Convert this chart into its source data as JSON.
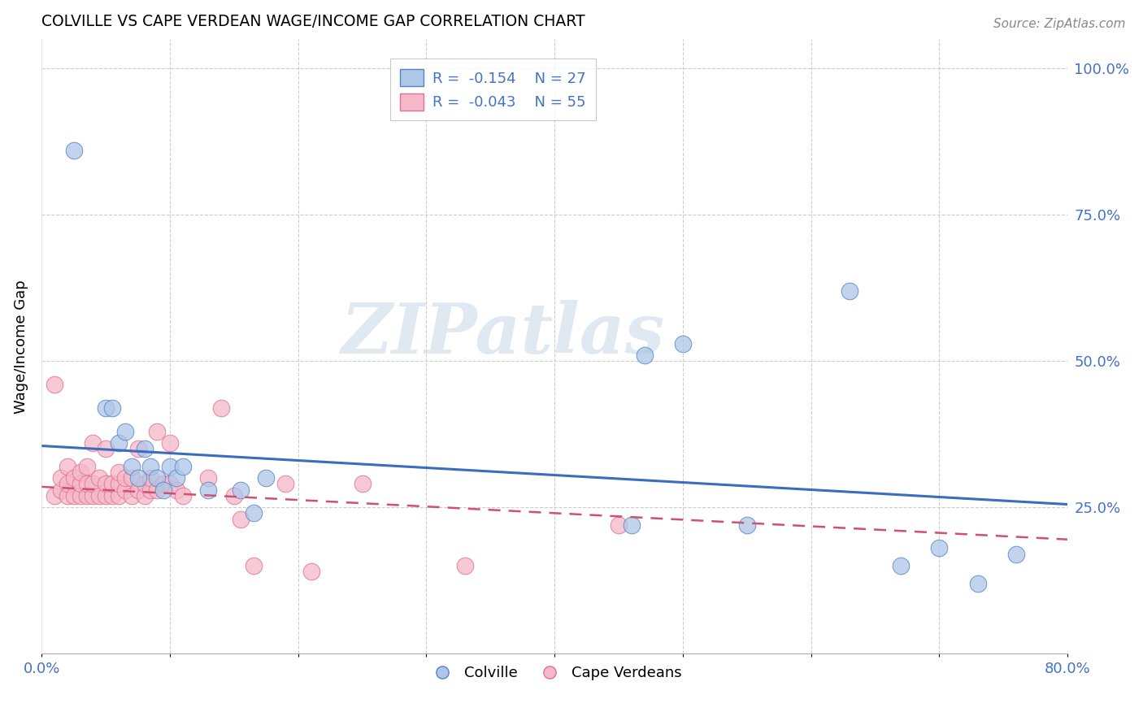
{
  "title": "COLVILLE VS CAPE VERDEAN WAGE/INCOME GAP CORRELATION CHART",
  "source": "Source: ZipAtlas.com",
  "ylabel": "Wage/Income Gap",
  "xlim": [
    0.0,
    0.8
  ],
  "ylim": [
    0.0,
    1.05
  ],
  "xticks": [
    0.0,
    0.1,
    0.2,
    0.3,
    0.4,
    0.5,
    0.6,
    0.7,
    0.8
  ],
  "xticklabels": [
    "0.0%",
    "",
    "",
    "",
    "",
    "",
    "",
    "",
    "80.0%"
  ],
  "yticks_right": [
    0.25,
    0.5,
    0.75,
    1.0
  ],
  "ytick_labels_right": [
    "25.0%",
    "50.0%",
    "75.0%",
    "100.0%"
  ],
  "colville_color": "#aec6e8",
  "cape_verde_color": "#f5b8c8",
  "colville_edge_color": "#5585c5",
  "cape_verde_edge_color": "#e07090",
  "colville_line_color": "#3a6cbf",
  "cape_verde_line_color": "#d05070",
  "colville_R": -0.154,
  "colville_N": 27,
  "cape_verde_R": -0.043,
  "cape_verde_N": 55,
  "watermark": "ZIPatlas",
  "colville_x": [
    0.025,
    0.05,
    0.055,
    0.06,
    0.065,
    0.07,
    0.075,
    0.08,
    0.085,
    0.09,
    0.095,
    0.1,
    0.105,
    0.11,
    0.13,
    0.155,
    0.165,
    0.175,
    0.46,
    0.47,
    0.5,
    0.55,
    0.63,
    0.67,
    0.7,
    0.73,
    0.76
  ],
  "colville_y": [
    0.86,
    0.42,
    0.42,
    0.36,
    0.38,
    0.32,
    0.3,
    0.35,
    0.32,
    0.3,
    0.28,
    0.32,
    0.3,
    0.32,
    0.28,
    0.28,
    0.24,
    0.3,
    0.22,
    0.51,
    0.53,
    0.22,
    0.62,
    0.15,
    0.18,
    0.12,
    0.17
  ],
  "cape_verde_x": [
    0.01,
    0.01,
    0.015,
    0.015,
    0.02,
    0.02,
    0.02,
    0.025,
    0.025,
    0.03,
    0.03,
    0.03,
    0.035,
    0.035,
    0.035,
    0.04,
    0.04,
    0.04,
    0.045,
    0.045,
    0.05,
    0.05,
    0.05,
    0.055,
    0.055,
    0.06,
    0.06,
    0.06,
    0.065,
    0.065,
    0.07,
    0.07,
    0.075,
    0.075,
    0.08,
    0.08,
    0.085,
    0.085,
    0.09,
    0.09,
    0.095,
    0.1,
    0.1,
    0.105,
    0.11,
    0.13,
    0.14,
    0.15,
    0.155,
    0.165,
    0.19,
    0.21,
    0.25,
    0.33,
    0.45
  ],
  "cape_verde_y": [
    0.27,
    0.46,
    0.28,
    0.3,
    0.27,
    0.29,
    0.32,
    0.27,
    0.3,
    0.27,
    0.29,
    0.31,
    0.27,
    0.29,
    0.32,
    0.27,
    0.29,
    0.36,
    0.27,
    0.3,
    0.27,
    0.29,
    0.35,
    0.27,
    0.29,
    0.27,
    0.29,
    0.31,
    0.28,
    0.3,
    0.27,
    0.3,
    0.28,
    0.35,
    0.27,
    0.29,
    0.28,
    0.3,
    0.28,
    0.38,
    0.29,
    0.29,
    0.36,
    0.28,
    0.27,
    0.3,
    0.42,
    0.27,
    0.23,
    0.15,
    0.29,
    0.14,
    0.29,
    0.15,
    0.22
  ]
}
